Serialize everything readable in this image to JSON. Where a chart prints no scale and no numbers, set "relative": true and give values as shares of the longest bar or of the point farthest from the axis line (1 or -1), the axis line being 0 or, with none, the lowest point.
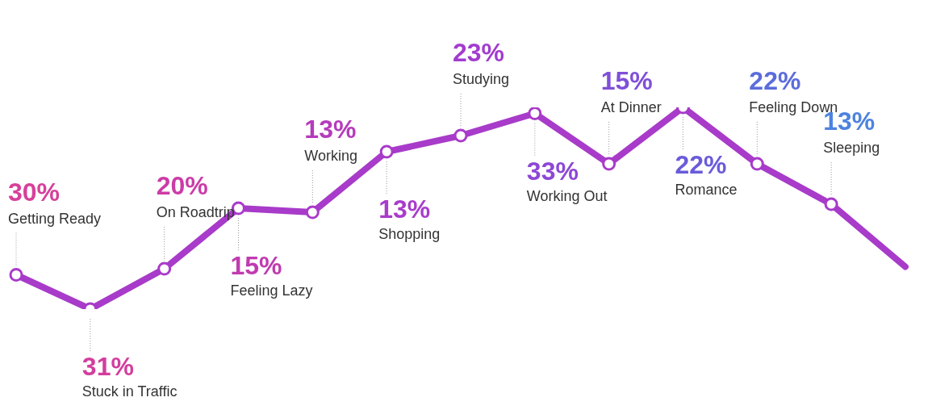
{
  "chart_data": {
    "type": "line",
    "relative": true,
    "marker": "circle",
    "categories": [
      null,
      null,
      null,
      null,
      null,
      null,
      null,
      null,
      null,
      null,
      null,
      null,
      null
    ],
    "values": [
      0.17,
      0,
      0.2,
      0.5,
      0.48,
      0.78,
      0.86,
      0.97,
      0.72,
      1,
      0.72,
      0.52,
      0.21
    ],
    "color": "#a83bc9",
    "colors": [
      "#d6409a",
      "#d33e9d",
      "#cb3ca6",
      "#c03bb0",
      "#b53bbb",
      "#a93ccb",
      "#a23ccf",
      "#8d47d6",
      "#7f4fd8",
      "#6a5bda",
      "#5c6cdc",
      "#4d83df",
      "#4a8fe2"
    ],
    "annotations": [
      "30%",
      "Getting Ready",
      "31%",
      "Stuck in Traffic",
      "20%",
      "On Roadtrip",
      "15%",
      "Feeling Lazy",
      "13%",
      "Working",
      "13%",
      "Shopping",
      "23%",
      "Studying",
      "33%",
      "Working Out",
      "15%",
      "At Dinner",
      "22%",
      "Romance",
      "22%",
      "Feeling Down",
      "13%",
      "Sleeping"
    ]
  }
}
